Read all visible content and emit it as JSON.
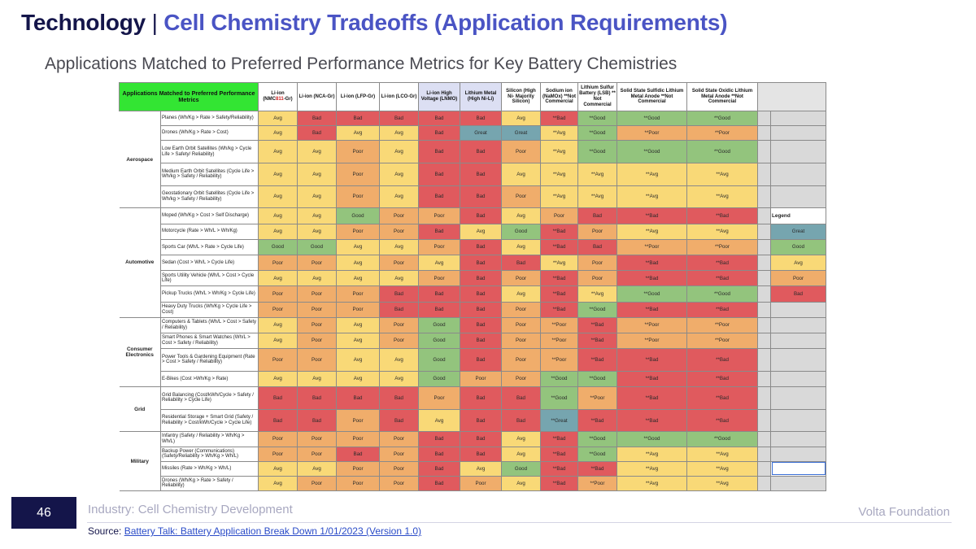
{
  "header": {
    "title_main": "Technology",
    "title_sep": " | ",
    "title_sub": "Cell Chemistry Tradeoffs (Application Requirements)",
    "subtitle": "Applications Matched to Preferred Performance Metrics for Key Battery Chemistries"
  },
  "table": {
    "corner_title": "Applications Matched to Preferred Performance Metrics",
    "chemistries": [
      {
        "pre": "Li-ion (NMC",
        "hl": "811",
        "post": "-Gr)"
      },
      {
        "pre": "Li-ion (NCA-Gr)"
      },
      {
        "pre": "Li-ion (LFP-Gr)"
      },
      {
        "pre": "Li-ion (LCO-Gr)"
      },
      {
        "pre": "Li-ion High Voltage (LNMO)"
      },
      {
        "pre": "Lithium Metal (High Ni-Li)"
      },
      {
        "pre": "Silicon (High Ni- Majority Silicon)"
      },
      {
        "pre": "Sodium ion (NaMOx) **Not Commercial"
      },
      {
        "pre": "Lithium Sulfur Battery (LSB) ** Not Commercial"
      },
      {
        "pre": "Solid State Sulfidic Lithium Metal Anode **Not Commercial"
      },
      {
        "pre": "Solid State Oxidic Lithium Metal Anode **Not Commercial"
      }
    ],
    "groups": [
      {
        "name": "Aerospace",
        "rows": [
          {
            "app": "Planes (Wh/Kg > Rate > Safety/Reliability)",
            "vals": [
              "Avg",
              "Bad",
              "Bad",
              "Bad",
              "Bad",
              "Bad",
              "Avg",
              "**Bad",
              "**Good",
              "**Good",
              "**Good"
            ]
          },
          {
            "app": "Drones (Wh/Kg > Rate > Cost)",
            "vals": [
              "Avg",
              "Bad",
              "Avg",
              "Avg",
              "Bad",
              "Great",
              "Great",
              "**Avg",
              "**Good",
              "**Poor",
              "**Poor"
            ]
          },
          {
            "app": "Low Earth Orbit Satellites (Wh/kg > Cycle Life > Safety/ Reliability)",
            "vals": [
              "Avg",
              "Avg",
              "Poor",
              "Avg",
              "Bad",
              "Bad",
              "Poor",
              "**Avg",
              "**Good",
              "**Good",
              "**Good"
            ]
          },
          {
            "app": "Medium Earth Orbit Satellites (Cycle Life > Wh/kg > Safety / Reliability)",
            "vals": [
              "Avg",
              "Avg",
              "Poor",
              "Avg",
              "Bad",
              "Bad",
              "Avg",
              "**Avg",
              "**Avg",
              "**Avg",
              "**Avg"
            ]
          },
          {
            "app": "Geostationary Orbit Satellites (Cycle Life > Wh/kg > Safety / Reliability)",
            "vals": [
              "Avg",
              "Avg",
              "Poor",
              "Avg",
              "Bad",
              "Bad",
              "Poor",
              "**Avg",
              "**Avg",
              "**Avg",
              "**Avg"
            ]
          }
        ]
      },
      {
        "name": "Automotive",
        "rows": [
          {
            "app": "Moped (Wh/Kg > Cost > Self Discharge)",
            "vals": [
              "Avg",
              "Avg",
              "Good",
              "Poor",
              "Poor",
              "Bad",
              "Avg",
              "Poor",
              "Bad",
              "**Bad",
              "**Bad"
            ]
          },
          {
            "app": "Motorcycle (Rate > Wh/L > Wh/Kg)",
            "vals": [
              "Avg",
              "Avg",
              "Poor",
              "Poor",
              "Bad",
              "Avg",
              "Good",
              "**Bad",
              "Poor",
              "**Avg",
              "**Avg"
            ]
          },
          {
            "app": "Sports Car (Wh/L > Rate > Cycle Life)",
            "vals": [
              "Good",
              "Good",
              "Avg",
              "Avg",
              "Poor",
              "Bad",
              "Avg",
              "**Bad",
              "Bad",
              "**Poor",
              "**Poor"
            ]
          },
          {
            "app": "Sedan (Cost > Wh/L > Cycle Life)",
            "vals": [
              "Poor",
              "Poor",
              "Avg",
              "Poor",
              "Avg",
              "Bad",
              "Bad",
              "**Avg",
              "Poor",
              "**Bad",
              "**Bad"
            ]
          },
          {
            "app": "Sports Utility Vehicle (Wh/L > Cost > Cycle Life)",
            "vals": [
              "Avg",
              "Avg",
              "Avg",
              "Avg",
              "Poor",
              "Bad",
              "Poor",
              "**Bad",
              "Poor",
              "**Bad",
              "**Bad"
            ]
          },
          {
            "app": "Pickup Trucks (Wh/L > Wh/Kg > Cycle Life)",
            "vals": [
              "Poor",
              "Poor",
              "Poor",
              "Bad",
              "Bad",
              "Bad",
              "Avg",
              "**Bad",
              "**Avg",
              "**Good",
              "**Good"
            ]
          },
          {
            "app": "Heavy Duty Trucks (Wh/Kg > Cycle Life > Cost)",
            "vals": [
              "Poor",
              "Poor",
              "Poor",
              "Bad",
              "Bad",
              "Bad",
              "Poor",
              "**Bad",
              "**Good",
              "**Bad",
              "**Bad"
            ]
          }
        ]
      },
      {
        "name": "Consumer Electronics",
        "rows": [
          {
            "app": "Computers & Tablets (Wh/L > Cost > Safety / Reliability)",
            "vals": [
              "Avg",
              "Poor",
              "Avg",
              "Poor",
              "Good",
              "Bad",
              "Poor",
              "**Poor",
              "**Bad",
              "**Poor",
              "**Poor"
            ]
          },
          {
            "app": "Smart Phones & Smart Watches (Wh/L > Cost > Safety / Reliability)",
            "vals": [
              "Avg",
              "Poor",
              "Avg",
              "Poor",
              "Good",
              "Bad",
              "Poor",
              "**Poor",
              "**Bad",
              "**Poor",
              "**Poor"
            ]
          },
          {
            "app": "Power Tools & Gardening Equipment (Rate > Cost > Safety / Reliability)",
            "vals": [
              "Poor",
              "Poor",
              "Avg",
              "Avg",
              "Good",
              "Bad",
              "Poor",
              "**Poor",
              "**Bad",
              "**Bad",
              "**Bad"
            ]
          },
          {
            "app": "E-Bikes (Cost >Wh/Kg > Rate)",
            "vals": [
              "Avg",
              "Avg",
              "Avg",
              "Avg",
              "Good",
              "Poor",
              "Poor",
              "**Good",
              "**Good",
              "**Bad",
              "**Bad"
            ]
          }
        ]
      },
      {
        "name": "Grid",
        "rows": [
          {
            "app": "Grid Balancing (Cost/kWh/Cycle > Safety / Reliability > Cycle Life)",
            "vals": [
              "Bad",
              "Bad",
              "Bad",
              "Bad",
              "Poor",
              "Bad",
              "Bad",
              "**Good",
              "**Poor",
              "**Bad",
              "**Bad"
            ]
          },
          {
            "app": "Residential Storage + Smart Grid (Safety / Reliability > Cost/kWh/Cycle > Cycle Life)",
            "vals": [
              "Bad",
              "Bad",
              "Poor",
              "Bad",
              "Avg",
              "Bad",
              "Bad",
              "**Great",
              "**Bad",
              "**Bad",
              "**Bad"
            ]
          }
        ]
      },
      {
        "name": "Military",
        "rows": [
          {
            "app": "Infantry (Safety / Reliability > Wh/Kg > Wh/L)",
            "vals": [
              "Poor",
              "Poor",
              "Poor",
              "Poor",
              "Bad",
              "Bad",
              "Avg",
              "**Bad",
              "**Good",
              "**Good",
              "**Good"
            ]
          },
          {
            "app": "Backup Power (Communications) (Safety/Reliability > Wh/Kg > Wh/L)",
            "vals": [
              "Poor",
              "Poor",
              "Bad",
              "Poor",
              "Bad",
              "Bad",
              "Avg",
              "**Bad",
              "**Good",
              "**Avg",
              "**Avg"
            ]
          },
          {
            "app": "Missiles (Rate > Wh/Kg > Wh/L)",
            "vals": [
              "Avg",
              "Avg",
              "Poor",
              "Poor",
              "Bad",
              "Avg",
              "Good",
              "**Bad",
              "**Bad",
              "**Avg",
              "**Avg"
            ]
          },
          {
            "app": "Drones (Wh/Kg > Rate > Safety / Reliability)",
            "vals": [
              "Avg",
              "Poor",
              "Poor",
              "Poor",
              "Bad",
              "Poor",
              "Avg",
              "**Bad",
              "**Poor",
              "**Avg",
              "**Avg"
            ]
          }
        ]
      }
    ],
    "legend": {
      "title": "Legend",
      "items": [
        "Great",
        "Good",
        "Avg",
        "Poor",
        "Bad"
      ]
    }
  },
  "colors": {
    "Great": "#76a5af",
    "Good": "#93c47d",
    "Avg": "#f9d977",
    "Poor": "#f0ad6b",
    "Bad": "#e05a5e",
    "accent_navy": "#14154a",
    "accent_blue": "#4a54c4",
    "header_green": "#33e533"
  },
  "footer": {
    "page_number": "46",
    "industry": "Industry: Cell Chemistry Development",
    "brand": "Volta Foundation",
    "source_label": "Source: ",
    "source_link": "Battery Talk: Battery Application Break Down 1/01/2023 (Version 1.0)"
  }
}
